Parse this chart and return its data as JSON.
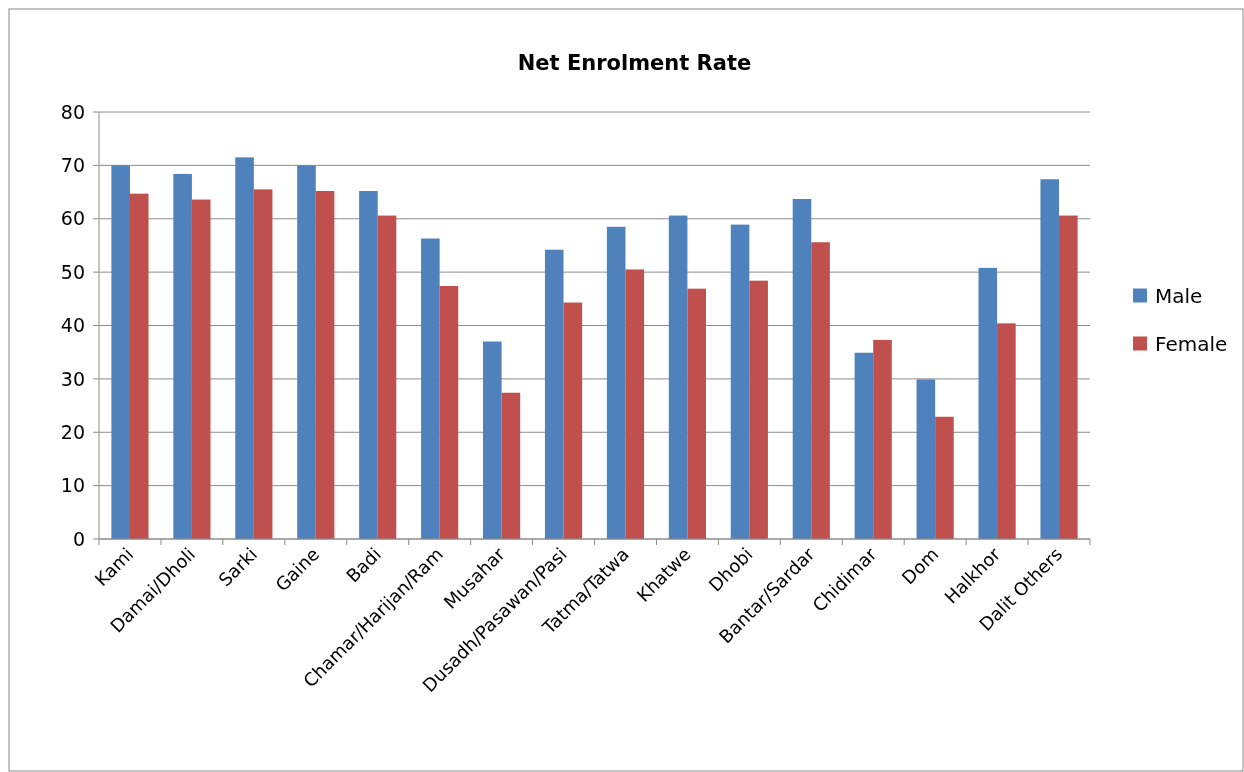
{
  "chart_data": {
    "type": "bar",
    "title": "Net Enrolment Rate",
    "categories": [
      "Kami",
      "Damai/Dholi",
      "Sarki",
      "Gaine",
      "Badi",
      "Chamar/Harijan/Ram",
      "Musahar",
      "Dusadh/Pasawan/Pasi",
      "Tatma/Tatwa",
      "Khatwe",
      "Dhobi",
      "Bantar/Sardar",
      "Chidimar",
      "Dom",
      "Halkhor",
      "Dalit Others"
    ],
    "series": [
      {
        "name": "Male",
        "color": "#4f81bd",
        "values": [
          70.0,
          68.4,
          71.5,
          70.0,
          65.2,
          56.3,
          37.0,
          54.2,
          58.5,
          60.6,
          58.9,
          63.7,
          34.9,
          29.9,
          50.8,
          67.4
        ]
      },
      {
        "name": "Female",
        "color": "#c0504d",
        "values": [
          64.7,
          63.6,
          65.5,
          65.2,
          60.6,
          47.4,
          27.4,
          44.3,
          50.5,
          46.9,
          48.4,
          55.6,
          37.3,
          22.9,
          40.4,
          60.6
        ]
      }
    ],
    "ylim": [
      0,
      80
    ],
    "yticks": [
      0,
      10,
      20,
      30,
      40,
      50,
      60,
      70,
      80
    ],
    "grid": "y",
    "legend": "right"
  }
}
